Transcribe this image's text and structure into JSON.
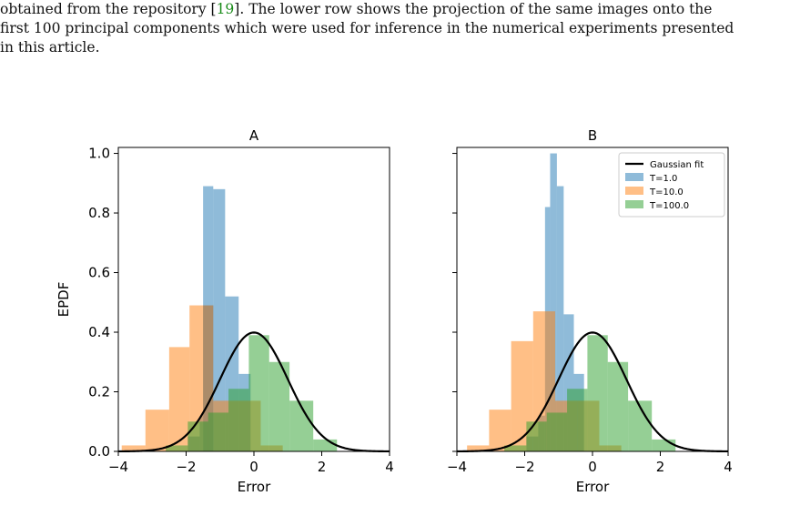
{
  "caption": {
    "line1_before": "obtained from the repository [",
    "line1_ref": "19",
    "line1_after": "]. The lower row shows the projection of the same images onto the",
    "line2": "first 100 principal components which were used for inference in the numerical experiments presented",
    "line3": "in this article."
  },
  "colors": {
    "T=1.0": "#1f77b4",
    "T=10.0": "#ff7f0e",
    "T=100.0": "#2ca02c",
    "Gaussian fit": "#000000"
  },
  "chart_data": [
    {
      "type": "histogram",
      "title": "A",
      "xlabel": "Error",
      "ylabel": "EPDF",
      "xlim": [
        -4,
        4
      ],
      "ylim": [
        0,
        1.02
      ],
      "xticks": [
        "−4",
        "−2",
        "0",
        "2",
        "4"
      ],
      "yticks": [
        "0.0",
        "0.2",
        "0.4",
        "0.6",
        "0.8",
        "1.0"
      ],
      "series": [
        {
          "name": "T=1.0",
          "bins": [
            [
              -1.95,
              -1.6,
              0.05
            ],
            [
              -1.6,
              -1.5,
              0.12
            ],
            [
              -1.5,
              -1.2,
              0.49
            ],
            [
              -1.2,
              -1.5,
              0
            ],
            [
              -1.5,
              -1.2,
              0.89
            ],
            [
              -1.2,
              -0.85,
              0.88
            ],
            [
              -0.85,
              -0.45,
              0.52
            ],
            [
              -0.45,
              -0.1,
              0.26
            ]
          ]
        },
        {
          "name": "T=10.0",
          "bins": [
            [
              -3.9,
              -3.2,
              0.02
            ],
            [
              -3.2,
              -2.5,
              0.14
            ],
            [
              -2.5,
              -1.9,
              0.35
            ],
            [
              -1.9,
              -1.2,
              0.49
            ],
            [
              -1.2,
              -0.55,
              0.17
            ],
            [
              -0.55,
              0.2,
              0.17
            ],
            [
              0.2,
              0.85,
              0.02
            ]
          ]
        },
        {
          "name": "T=100.0",
          "bins": [
            [
              -2.6,
              -1.95,
              0.02
            ],
            [
              -1.95,
              -1.35,
              0.1
            ],
            [
              -1.35,
              -0.75,
              0.13
            ],
            [
              -0.75,
              -0.15,
              0.21
            ],
            [
              -0.15,
              0.45,
              0.39
            ],
            [
              0.45,
              1.05,
              0.3
            ],
            [
              1.05,
              1.75,
              0.17
            ],
            [
              1.75,
              2.45,
              0.04
            ]
          ]
        }
      ],
      "gaussian_fit": {
        "name": "Gaussian fit",
        "mean": 0,
        "std": 1
      }
    },
    {
      "type": "histogram",
      "title": "B",
      "xlabel": "Error",
      "xlim": [
        -4,
        4
      ],
      "ylim": [
        0,
        1.02
      ],
      "xticks": [
        "−4",
        "−2",
        "0",
        "2",
        "4"
      ],
      "legend": {
        "position": "upper right",
        "entries": [
          "Gaussian fit",
          "T=1.0",
          "T=10.0",
          "T=100.0"
        ]
      },
      "series": [
        {
          "name": "T=1.0",
          "bins": [
            [
              -1.95,
              -1.6,
              0.05
            ],
            [
              -1.6,
              -1.4,
              0.12
            ],
            [
              -1.4,
              -1.25,
              0.82
            ],
            [
              -1.25,
              -1.05,
              1.0
            ],
            [
              -1.05,
              -0.85,
              0.89
            ],
            [
              -0.85,
              -0.55,
              0.46
            ],
            [
              -0.55,
              -0.25,
              0.26
            ]
          ]
        },
        {
          "name": "T=10.0",
          "bins": [
            [
              -3.7,
              -3.05,
              0.02
            ],
            [
              -3.05,
              -2.4,
              0.14
            ],
            [
              -2.4,
              -1.75,
              0.37
            ],
            [
              -1.75,
              -1.1,
              0.47
            ],
            [
              -1.1,
              -0.45,
              0.17
            ],
            [
              -0.45,
              0.2,
              0.17
            ],
            [
              0.2,
              0.85,
              0.02
            ]
          ]
        },
        {
          "name": "T=100.0",
          "bins": [
            [
              -2.6,
              -1.95,
              0.02
            ],
            [
              -1.95,
              -1.35,
              0.1
            ],
            [
              -1.35,
              -0.75,
              0.13
            ],
            [
              -0.75,
              -0.15,
              0.21
            ],
            [
              -0.15,
              0.45,
              0.39
            ],
            [
              0.45,
              1.05,
              0.3
            ],
            [
              1.05,
              1.75,
              0.17
            ],
            [
              1.75,
              2.45,
              0.04
            ]
          ]
        }
      ],
      "gaussian_fit": {
        "name": "Gaussian fit",
        "mean": 0,
        "std": 1
      }
    }
  ]
}
